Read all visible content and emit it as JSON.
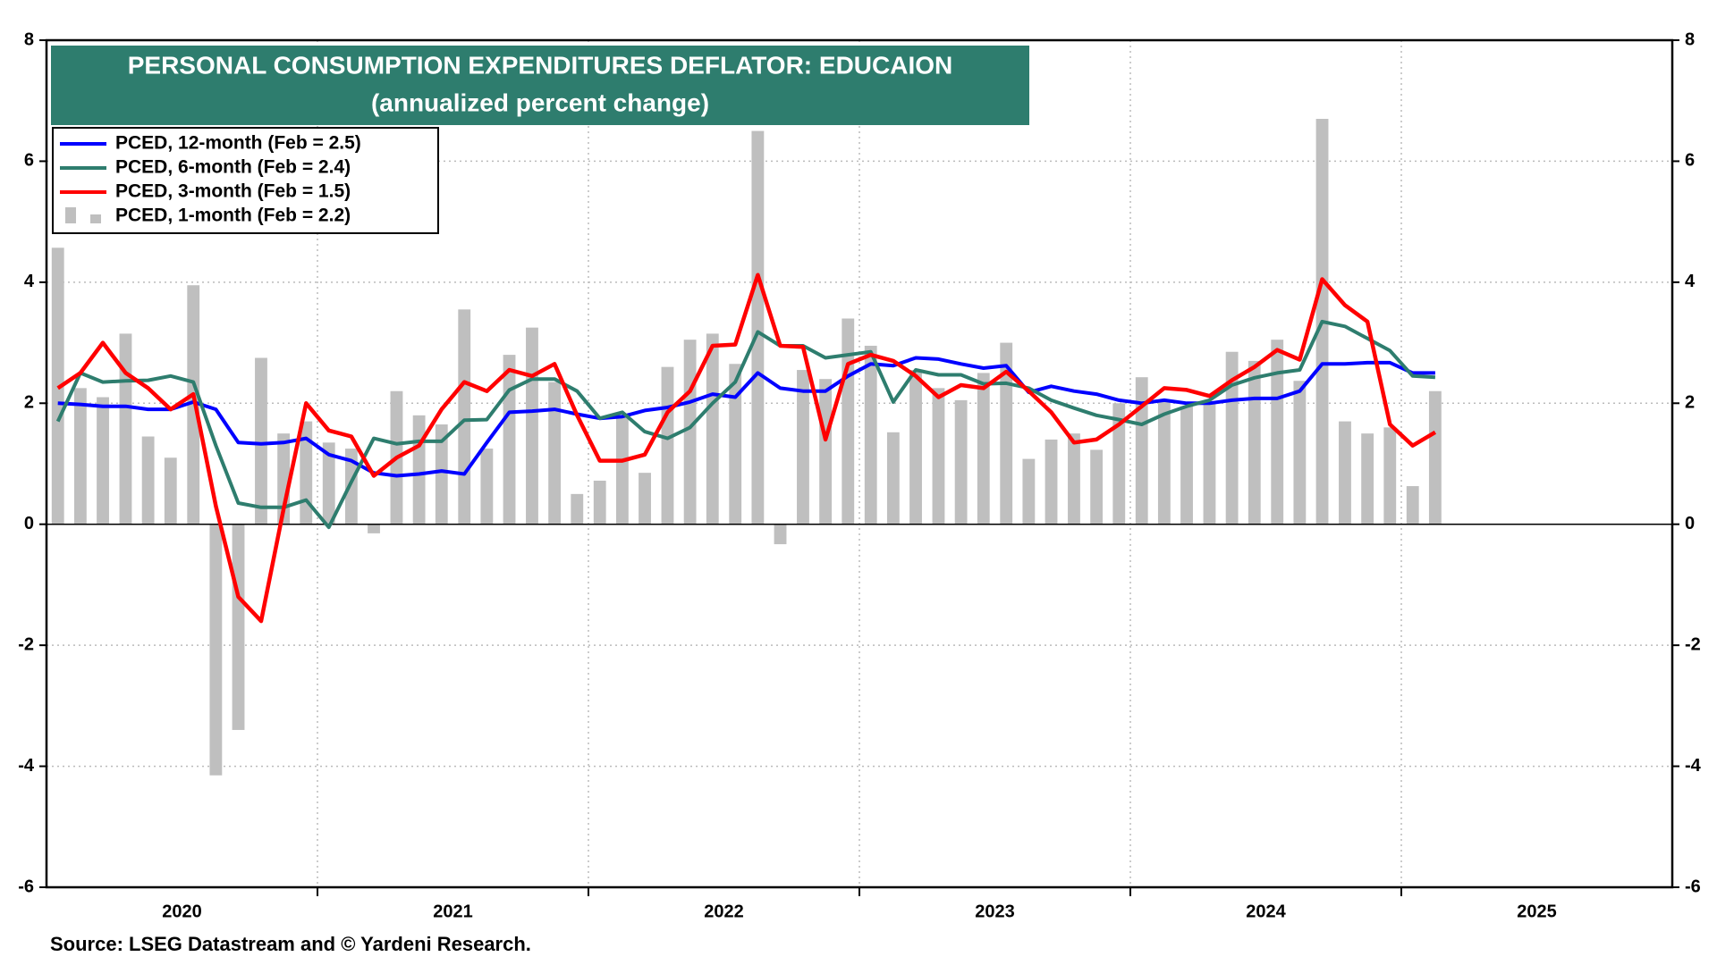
{
  "chart_data": {
    "type": "line_bar",
    "title": "PERSONAL CONSUMPTION EXPENDITURES DEFLATOR: EDUCAION",
    "subtitle": "(annualized percent change)",
    "source": "Source: LSEG Datastream and © Yardeni Research.",
    "xlim": [
      2020,
      2026
    ],
    "xticks": [
      {
        "value": 2020.5,
        "label": "2020"
      },
      {
        "value": 2021.5,
        "label": "2021"
      },
      {
        "value": 2022.5,
        "label": "2022"
      },
      {
        "value": 2023.5,
        "label": "2023"
      },
      {
        "value": 2024.5,
        "label": "2024"
      },
      {
        "value": 2025.5,
        "label": "2025"
      }
    ],
    "xgrid": [
      2021,
      2022,
      2023,
      2024,
      2025
    ],
    "ylim": [
      -6,
      8
    ],
    "yticks": [
      -6,
      -4,
      -2,
      0,
      2,
      4,
      6,
      8
    ],
    "grid": true,
    "legend": "upper left",
    "x": [
      2020.042,
      2020.125,
      2020.208,
      2020.292,
      2020.375,
      2020.458,
      2020.542,
      2020.625,
      2020.708,
      2020.792,
      2020.875,
      2020.958,
      2021.042,
      2021.125,
      2021.208,
      2021.292,
      2021.375,
      2021.458,
      2021.542,
      2021.625,
      2021.708,
      2021.792,
      2021.875,
      2021.958,
      2022.042,
      2022.125,
      2022.208,
      2022.292,
      2022.375,
      2022.458,
      2022.542,
      2022.625,
      2022.708,
      2022.792,
      2022.875,
      2022.958,
      2023.042,
      2023.125,
      2023.208,
      2023.292,
      2023.375,
      2023.458,
      2023.542,
      2023.625,
      2023.708,
      2023.792,
      2023.875,
      2023.958,
      2024.042,
      2024.125,
      2024.208,
      2024.292,
      2024.375,
      2024.458,
      2024.542,
      2024.625,
      2024.708,
      2024.792,
      2024.875,
      2024.958,
      2025.042,
      2025.125
    ],
    "series": [
      {
        "name": "PCED, 12-month (Feb = 2.5)",
        "kind": "line",
        "color": "#0000ff",
        "values": [
          2.0,
          1.98,
          1.95,
          1.95,
          1.9,
          1.9,
          2.02,
          1.9,
          1.35,
          1.33,
          1.35,
          1.42,
          1.15,
          1.05,
          0.85,
          0.8,
          0.83,
          0.88,
          0.83,
          1.35,
          1.85,
          1.87,
          1.9,
          1.82,
          1.75,
          1.78,
          1.88,
          1.93,
          2.02,
          2.15,
          2.1,
          2.5,
          2.25,
          2.2,
          2.2,
          2.45,
          2.65,
          2.62,
          2.75,
          2.73,
          2.65,
          2.58,
          2.62,
          2.18,
          2.28,
          2.2,
          2.15,
          2.05,
          2.0,
          2.05,
          2.0,
          2.0,
          2.05,
          2.08,
          2.08,
          2.2,
          2.65,
          2.65,
          2.67,
          2.67,
          2.5,
          2.5
        ]
      },
      {
        "name": "PCED, 6-month (Feb = 2.4)",
        "kind": "line",
        "color": "#2e7d6e",
        "values": [
          1.7,
          2.5,
          2.35,
          2.37,
          2.38,
          2.45,
          2.35,
          1.3,
          0.35,
          0.28,
          0.28,
          0.4,
          -0.05,
          0.7,
          1.42,
          1.33,
          1.37,
          1.37,
          1.72,
          1.73,
          2.22,
          2.4,
          2.4,
          2.2,
          1.75,
          1.85,
          1.53,
          1.42,
          1.6,
          2.0,
          2.35,
          3.18,
          2.95,
          2.95,
          2.75,
          2.8,
          2.85,
          2.02,
          2.55,
          2.47,
          2.47,
          2.32,
          2.33,
          2.25,
          2.05,
          1.92,
          1.8,
          1.73,
          1.65,
          1.82,
          1.95,
          2.05,
          2.3,
          2.42,
          2.5,
          2.55,
          3.35,
          3.27,
          3.07,
          2.87,
          2.45,
          2.43
        ]
      },
      {
        "name": "PCED, 3-month (Feb = 1.5)",
        "kind": "line",
        "color": "#ff0000",
        "values": [
          2.25,
          2.5,
          3.0,
          2.5,
          2.25,
          1.9,
          2.15,
          0.3,
          -1.2,
          -1.6,
          0.25,
          2.0,
          1.55,
          1.45,
          0.8,
          1.1,
          1.3,
          1.9,
          2.35,
          2.2,
          2.55,
          2.45,
          2.65,
          1.8,
          1.05,
          1.05,
          1.15,
          1.85,
          2.2,
          2.95,
          2.97,
          4.12,
          2.95,
          2.93,
          1.4,
          2.65,
          2.8,
          2.7,
          2.45,
          2.1,
          2.3,
          2.25,
          2.52,
          2.2,
          1.85,
          1.35,
          1.4,
          1.65,
          1.95,
          2.25,
          2.22,
          2.12,
          2.38,
          2.6,
          2.88,
          2.72,
          4.05,
          3.62,
          3.35,
          1.65,
          1.3,
          1.52
        ]
      },
      {
        "name": "PCED, 1-month (Feb = 2.2)",
        "kind": "bar",
        "color": "#bfbfbf",
        "values": [
          4.57,
          2.25,
          2.1,
          3.15,
          1.45,
          1.1,
          3.95,
          -4.15,
          -3.4,
          2.75,
          1.5,
          1.7,
          1.35,
          1.25,
          -0.15,
          2.2,
          1.8,
          1.65,
          3.55,
          1.25,
          2.8,
          3.25,
          2.35,
          0.5,
          0.72,
          1.8,
          0.85,
          2.6,
          3.05,
          3.15,
          2.65,
          6.5,
          -0.33,
          2.55,
          2.4,
          3.4,
          2.95,
          1.52,
          2.55,
          2.25,
          2.05,
          2.5,
          3.0,
          1.08,
          1.4,
          1.5,
          1.23,
          2.0,
          2.43,
          2.05,
          1.95,
          2.0,
          2.85,
          2.7,
          3.05,
          2.37,
          6.7,
          1.7,
          1.5,
          1.6,
          0.63,
          2.2
        ]
      }
    ]
  }
}
